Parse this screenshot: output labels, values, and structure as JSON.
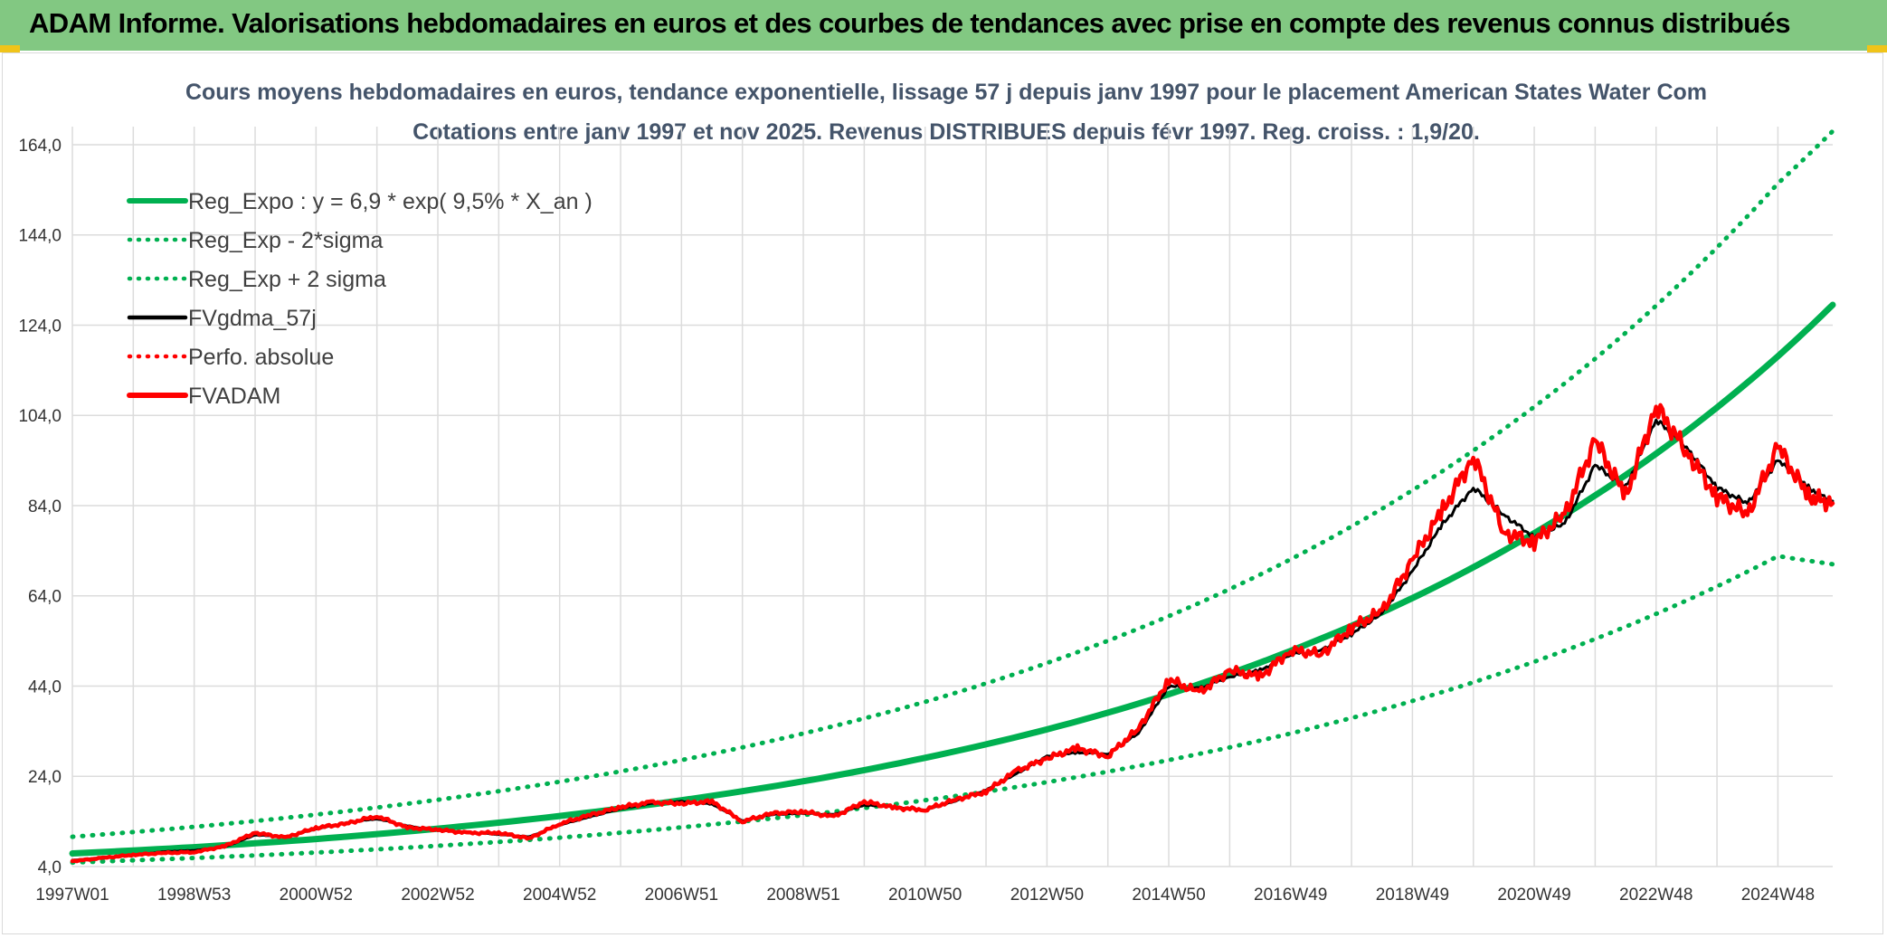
{
  "header": {
    "title": "ADAM Informe. Valorisations hebdomadaires en euros et des courbes de tendances avec prise en compte des revenus connus distribués"
  },
  "colors": {
    "banner": "#82c882",
    "trend": "#00b050",
    "smooth": "#000000",
    "price": "#ff0000",
    "grid": "#dcdcdc"
  },
  "chart_data": {
    "type": "line",
    "title": "Cours moyens hebdomadaires en euros, tendance exponentielle, lissage 57 j depuis janv 1997 pour le placement American States Water Com",
    "subtitle": "Cotations entre janv 1997 et nov 2025. Revenus DISTRIBUES depuis févr 1997. Reg. croiss. : 1,9/20.",
    "xlabel": "",
    "ylabel": "",
    "xlim": [
      1997.0,
      2025.9
    ],
    "ylim": [
      4,
      168
    ],
    "y_ticks": [
      4,
      24,
      44,
      64,
      84,
      104,
      124,
      144,
      164
    ],
    "y_tick_labels": [
      "4,0",
      "24,0",
      "44,0",
      "64,0",
      "84,0",
      "104,0",
      "124,0",
      "144,0",
      "164,0"
    ],
    "x_tick_labels": [
      "1997W01",
      "1998W53",
      "2000W52",
      "2002W52",
      "2004W52",
      "2006W51",
      "2008W51",
      "2010W50",
      "2012W50",
      "2014W50",
      "2016W49",
      "2018W49",
      "2020W49",
      "2022W48",
      "2024W48"
    ],
    "x_tick_positions": [
      1997.0,
      1999.0,
      2001.0,
      2003.0,
      2005.0,
      2007.0,
      2009.0,
      2011.0,
      2013.0,
      2015.0,
      2017.0,
      2019.0,
      2021.0,
      2023.0,
      2025.0
    ],
    "grid": true,
    "legend": {
      "position": "top-left",
      "entries": [
        {
          "label": "Reg_Expo : y = 6,9 * exp( 9,5% *  X_an )",
          "color": "#00b050",
          "style": "solid-thick"
        },
        {
          "label": "Reg_Exp - 2*sigma",
          "color": "#00b050",
          "style": "dotted"
        },
        {
          "label": "Reg_Exp + 2 sigma",
          "color": "#00b050",
          "style": "dotted"
        },
        {
          "label": "FVgdma_57j",
          "color": "#000000",
          "style": "solid"
        },
        {
          "label": "Perfo. absolue",
          "color": "#ff0000",
          "style": "dotted"
        },
        {
          "label": "FVADAM",
          "color": "#ff0000",
          "style": "solid-thick"
        }
      ]
    },
    "series": [
      {
        "name": "Reg_Expo : y = 6,9 * exp( 9,5% *  X_an )",
        "x": [
          1997,
          1999,
          2001,
          2003,
          2005,
          2007,
          2009,
          2011,
          2013,
          2015,
          2017,
          2019,
          2021,
          2023,
          2025,
          2025.9
        ],
        "values": [
          6.9,
          8.3,
          10.1,
          12.4,
          15.2,
          18.7,
          22.9,
          28.1,
          34.4,
          42.2,
          51.8,
          63.5,
          77.9,
          95.5,
          117.1,
          128.5
        ]
      },
      {
        "name": "Reg_Exp - 2*sigma",
        "x": [
          1997,
          1999,
          2001,
          2003,
          2005,
          2007,
          2009,
          2011,
          2013,
          2015,
          2017,
          2019,
          2021,
          2023,
          2025,
          2025.9
        ],
        "values": [
          4.9,
          5.9,
          7.1,
          8.6,
          10.4,
          12.7,
          15.4,
          18.7,
          22.7,
          27.6,
          33.5,
          40.7,
          49.4,
          60.0,
          72.8,
          71.0
        ]
      },
      {
        "name": "Reg_Exp + 2 sigma",
        "x": [
          1997,
          1999,
          2001,
          2003,
          2005,
          2007,
          2009,
          2011,
          2013,
          2015,
          2017,
          2019,
          2021,
          2023,
          2025,
          2025.9
        ],
        "values": [
          10.6,
          12.8,
          15.5,
          18.8,
          22.8,
          27.6,
          33.5,
          40.5,
          49.1,
          59.5,
          72.1,
          87.4,
          105.9,
          128.3,
          155.4,
          167.0
        ]
      },
      {
        "name": "FVgdma_57j",
        "x": [
          1997.0,
          1997.5,
          1998.0,
          1998.5,
          1999.0,
          1999.5,
          2000.0,
          2000.5,
          2001.0,
          2001.5,
          2002.0,
          2002.5,
          2003.0,
          2003.5,
          2004.0,
          2004.5,
          2005.0,
          2005.5,
          2006.0,
          2006.5,
          2007.0,
          2007.5,
          2008.0,
          2008.5,
          2009.0,
          2009.5,
          2010.0,
          2010.5,
          2011.0,
          2011.5,
          2012.0,
          2012.5,
          2013.0,
          2013.5,
          2014.0,
          2014.5,
          2015.0,
          2015.5,
          2016.0,
          2016.5,
          2017.0,
          2017.5,
          2018.0,
          2018.5,
          2019.0,
          2019.5,
          2020.0,
          2020.5,
          2021.0,
          2021.5,
          2022.0,
          2022.5,
          2023.0,
          2023.5,
          2024.0,
          2024.5,
          2025.0,
          2025.5,
          2025.9
        ],
        "values": [
          5.4,
          6.0,
          6.5,
          7.3,
          7.6,
          8.3,
          11.0,
          10.6,
          12.3,
          13.7,
          14.6,
          13.0,
          12.0,
          11.6,
          11.1,
          10.6,
          13.2,
          15.0,
          16.8,
          17.9,
          18.5,
          17.8,
          14.2,
          15.5,
          15.8,
          15.5,
          17.6,
          17.2,
          16.5,
          18.5,
          21.0,
          24.5,
          28.5,
          29.2,
          29.0,
          33.5,
          44.0,
          43.5,
          46.0,
          47.5,
          51.0,
          52.0,
          55.5,
          60.0,
          69.5,
          80.0,
          88.0,
          82.0,
          77.0,
          80.0,
          93.0,
          88.0,
          103.0,
          97.0,
          88.0,
          84.5,
          94.0,
          88.0,
          85.0
        ]
      },
      {
        "name": "FVADAM",
        "x": [
          1997.0,
          1997.5,
          1998.0,
          1998.5,
          1999.0,
          1999.5,
          2000.0,
          2000.5,
          2001.0,
          2001.5,
          2002.0,
          2002.5,
          2003.0,
          2003.5,
          2004.0,
          2004.5,
          2005.0,
          2005.5,
          2006.0,
          2006.5,
          2007.0,
          2007.5,
          2008.0,
          2008.5,
          2009.0,
          2009.5,
          2010.0,
          2010.5,
          2011.0,
          2011.5,
          2012.0,
          2012.5,
          2013.0,
          2013.5,
          2014.0,
          2014.5,
          2015.0,
          2015.5,
          2016.0,
          2016.5,
          2017.0,
          2017.5,
          2018.0,
          2018.5,
          2019.0,
          2019.5,
          2020.0,
          2020.5,
          2021.0,
          2021.5,
          2022.0,
          2022.5,
          2023.0,
          2023.5,
          2024.0,
          2024.5,
          2025.0,
          2025.5,
          2025.9
        ],
        "values": [
          5.2,
          5.9,
          6.6,
          7.0,
          7.2,
          8.5,
          11.5,
          10.4,
          12.6,
          13.5,
          15.2,
          12.6,
          12.2,
          11.4,
          11.5,
          10.2,
          13.5,
          15.4,
          17.2,
          18.2,
          18.0,
          18.4,
          14.0,
          15.8,
          16.2,
          15.0,
          18.4,
          17.0,
          16.6,
          18.8,
          20.6,
          25.2,
          28.0,
          30.2,
          28.5,
          34.5,
          45.5,
          42.5,
          47.5,
          46.0,
          52.0,
          51.0,
          57.0,
          60.5,
          72.0,
          83.0,
          95.0,
          78.0,
          76.0,
          82.0,
          98.5,
          86.0,
          106.0,
          96.0,
          86.0,
          82.0,
          97.0,
          86.0,
          84.5
        ]
      }
    ]
  }
}
